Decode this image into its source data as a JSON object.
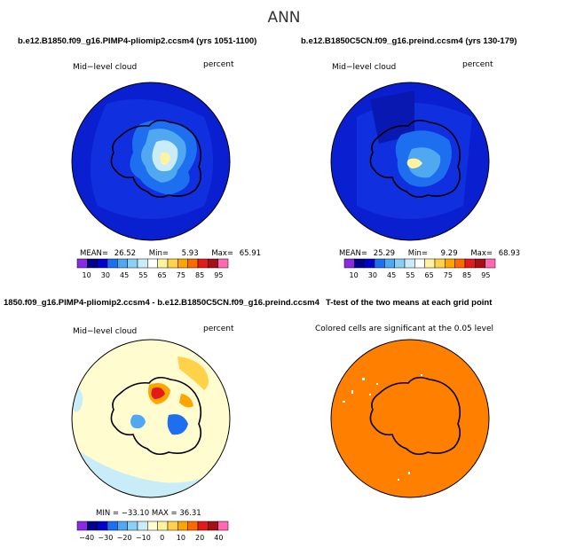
{
  "page": {
    "title": "ANN"
  },
  "panels": [
    {
      "title": "b.e12.B1850.f09_g16.PIMP4-pliomip2.ccsm4 (yrs 1051-1100)",
      "left_label": "Mid−level cloud",
      "right_label": "percent",
      "stats": {
        "mean_label": "MEAN=",
        "mean": "26.52",
        "min_label": "Min=",
        "min": "5.93",
        "max_label": "Max=",
        "max": "65.91"
      }
    },
    {
      "title": "b.e12.B1850C5CN.f09_g16.preind.ccsm4 (yrs 130-179)",
      "left_label": "Mid−level cloud",
      "right_label": "percent",
      "stats": {
        "mean_label": "MEAN=",
        "mean": "25.29",
        "min_label": "Min=",
        "min": "9.29",
        "max_label": "Max=",
        "max": "68.93"
      }
    },
    {
      "title": "1850.f09_g16.PIMP4-pliomip2.ccsm4 - b.e12.B1850C5CN.f09_g16.preind.ccsm4",
      "left_label": "Mid−level cloud",
      "right_label": "percent",
      "stats_text": "MIN = −33.10 MAX =  36.31"
    },
    {
      "title": "T-test of the two means at each grid point",
      "note": "Colored cells are significant at the 0.05 level"
    }
  ],
  "chart_data": [
    {
      "type": "heatmap",
      "projection": "south-polar-stereographic",
      "title": "b.e12.B1850.f09_g16.PIMP4-pliomip2.ccsm4 (yrs 1051-1100)",
      "variable": "Mid−level cloud",
      "units": "percent",
      "mean": 26.52,
      "min": 5.93,
      "max": 65.91,
      "colorbar": {
        "ticks": [
          "10",
          "30",
          "45",
          "55",
          "65",
          "75",
          "85",
          "95"
        ],
        "colors": [
          "#8a2be2",
          "#00008b",
          "#0000cd",
          "#1e6ff0",
          "#4fa8f0",
          "#8ccff5",
          "#c8ecf8",
          "#ffffff",
          "#fff3a0",
          "#ffd24a",
          "#ffa500",
          "#ff6a00",
          "#e31a1c",
          "#a50f15",
          "#ff69b4"
        ]
      }
    },
    {
      "type": "heatmap",
      "projection": "south-polar-stereographic",
      "title": "b.e12.B1850C5CN.f09_g16.preind.ccsm4 (yrs 130-179)",
      "variable": "Mid−level cloud",
      "units": "percent",
      "mean": 25.29,
      "min": 9.29,
      "max": 68.93,
      "colorbar": {
        "ticks": [
          "10",
          "30",
          "45",
          "55",
          "65",
          "75",
          "85",
          "95"
        ],
        "colors": [
          "#8a2be2",
          "#00008b",
          "#0000cd",
          "#1e6ff0",
          "#4fa8f0",
          "#8ccff5",
          "#c8ecf8",
          "#ffffff",
          "#fff3a0",
          "#ffd24a",
          "#ffa500",
          "#ff6a00",
          "#e31a1c",
          "#a50f15",
          "#ff69b4"
        ]
      }
    },
    {
      "type": "heatmap",
      "projection": "south-polar-stereographic",
      "title": "1850.f09_g16.PIMP4-pliomip2.ccsm4 - b.e12.B1850C5CN.f09_g16.preind.ccsm4",
      "variable": "Mid−level cloud",
      "units": "percent",
      "min": -33.1,
      "max": 36.31,
      "colorbar": {
        "ticks": [
          "−40",
          "−30",
          "−20",
          "−10",
          "0",
          "10",
          "20",
          "40"
        ],
        "colors": [
          "#8a2be2",
          "#00008b",
          "#0000cd",
          "#1e6ff0",
          "#4fa8f0",
          "#8ccff5",
          "#c8ecf8",
          "#fffcd0",
          "#fff3a0",
          "#ffd24a",
          "#ffa500",
          "#ff6a00",
          "#e31a1c",
          "#a50f15",
          "#ff69b4"
        ]
      }
    },
    {
      "type": "heatmap",
      "projection": "south-polar-stereographic",
      "title": "T-test of the two means at each grid point",
      "note": "Colored cells are significant at the 0.05 level",
      "colors": {
        "significant": "#ff7f00",
        "not_significant": "#ffffff"
      }
    }
  ]
}
